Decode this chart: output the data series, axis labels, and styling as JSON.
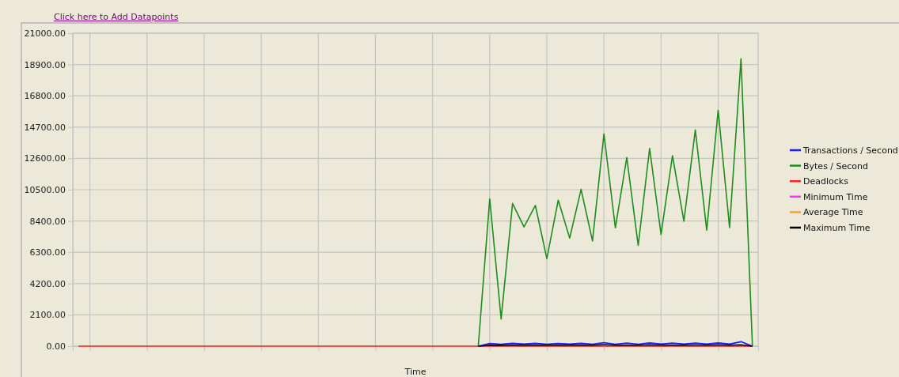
{
  "chart_data": {
    "type": "line",
    "xlabel": "Time",
    "annotations": [
      "Click here to Add Datapoints"
    ],
    "categories": [
      null,
      null,
      null,
      null,
      null,
      null,
      null,
      null,
      null,
      null,
      null,
      null,
      null,
      null,
      null,
      null,
      null,
      null,
      null,
      null,
      null,
      null,
      null,
      null,
      null,
      null,
      null,
      null,
      null,
      null,
      null,
      null,
      null,
      null,
      null,
      null,
      null,
      null,
      null,
      null,
      null,
      null,
      null,
      null,
      null,
      null,
      null,
      null,
      null,
      null,
      null,
      null,
      null,
      null,
      null,
      null,
      null,
      null,
      null,
      null
    ],
    "ylim": [
      0,
      21000
    ],
    "yticks": [
      {
        "value": 0,
        "label": "0.00"
      },
      {
        "value": 2100,
        "label": "2100.00"
      },
      {
        "value": 4200,
        "label": "4200.00"
      },
      {
        "value": 6300,
        "label": "6300.00"
      },
      {
        "value": 8400,
        "label": "8400.00"
      },
      {
        "value": 10500,
        "label": "10500.00"
      },
      {
        "value": 12600,
        "label": "12600.00"
      },
      {
        "value": 14700,
        "label": "14700.00"
      },
      {
        "value": 16800,
        "label": "16800.00"
      },
      {
        "value": 18900,
        "label": "18900.00"
      },
      {
        "value": 21000,
        "label": "21000.00"
      }
    ],
    "tick_labels": "y",
    "grid": true,
    "legend": "right",
    "marker": "none",
    "line_style": "solid",
    "series": [
      {
        "name": "Transactions / Second",
        "color": "#1a1aff",
        "values": [
          null,
          null,
          null,
          null,
          null,
          null,
          null,
          null,
          null,
          null,
          null,
          null,
          null,
          null,
          null,
          null,
          null,
          null,
          null,
          null,
          null,
          null,
          null,
          null,
          null,
          null,
          null,
          null,
          null,
          null,
          null,
          null,
          null,
          null,
          null,
          0,
          180,
          130,
          190,
          140,
          190,
          130,
          180,
          140,
          190,
          130,
          230,
          130,
          210,
          130,
          220,
          140,
          210,
          140,
          210,
          140,
          220,
          140,
          300,
          0
        ]
      },
      {
        "name": "Bytes / Second",
        "color": "#1e8c1e",
        "values": [
          null,
          null,
          null,
          null,
          null,
          null,
          null,
          null,
          null,
          null,
          null,
          null,
          null,
          null,
          null,
          null,
          null,
          null,
          null,
          null,
          null,
          null,
          null,
          null,
          null,
          null,
          null,
          null,
          null,
          null,
          null,
          null,
          null,
          null,
          null,
          0,
          9880,
          1820,
          9580,
          8000,
          9440,
          5880,
          9800,
          7250,
          10520,
          7060,
          14240,
          7940,
          12660,
          6760,
          13270,
          7500,
          12780,
          8380,
          14510,
          7780,
          15830,
          7960,
          19290,
          0
        ]
      },
      {
        "name": "Deadlocks",
        "color": "#ff2020",
        "values": [
          0,
          0,
          0,
          0,
          0,
          0,
          0,
          0,
          0,
          0,
          0,
          0,
          0,
          0,
          0,
          0,
          0,
          0,
          0,
          0,
          0,
          0,
          0,
          0,
          0,
          0,
          0,
          0,
          0,
          0,
          0,
          0,
          0,
          0,
          0,
          0,
          0,
          0,
          0,
          0,
          0,
          0,
          0,
          0,
          0,
          0,
          0,
          0,
          0,
          0,
          0,
          0,
          0,
          0,
          0,
          0,
          0,
          0,
          0,
          0
        ]
      },
      {
        "name": "Minimum Time",
        "color": "#ff30ff",
        "values": [
          null,
          null,
          null,
          null,
          null,
          null,
          null,
          null,
          null,
          null,
          null,
          null,
          null,
          null,
          null,
          null,
          null,
          null,
          null,
          null,
          null,
          null,
          null,
          null,
          null,
          null,
          null,
          null,
          null,
          null,
          null,
          null,
          null,
          null,
          null,
          null,
          null,
          null,
          null,
          null,
          null,
          null,
          null,
          null,
          null,
          null,
          null,
          null,
          null,
          null,
          null,
          null,
          null,
          null,
          null,
          null,
          null,
          null,
          null,
          null
        ]
      },
      {
        "name": "Average Time",
        "color": "#ffa020",
        "values": [
          null,
          null,
          null,
          null,
          null,
          null,
          null,
          null,
          null,
          null,
          null,
          null,
          null,
          null,
          null,
          null,
          null,
          null,
          null,
          null,
          null,
          null,
          null,
          null,
          null,
          null,
          null,
          null,
          null,
          null,
          null,
          null,
          null,
          null,
          null,
          null,
          null,
          null,
          null,
          null,
          null,
          null,
          null,
          null,
          null,
          null,
          null,
          null,
          null,
          null,
          null,
          null,
          null,
          null,
          null,
          null,
          null,
          null,
          null,
          null
        ]
      },
      {
        "name": "Maximum Time",
        "color": "#000000",
        "values": [
          null,
          null,
          null,
          null,
          null,
          null,
          null,
          null,
          null,
          null,
          null,
          null,
          null,
          null,
          null,
          null,
          null,
          null,
          null,
          null,
          null,
          null,
          null,
          null,
          null,
          null,
          null,
          null,
          null,
          null,
          null,
          null,
          null,
          null,
          null,
          0,
          70,
          60,
          80,
          70,
          80,
          70,
          70,
          70,
          80,
          70,
          110,
          70,
          80,
          70,
          90,
          70,
          80,
          70,
          90,
          70,
          90,
          70,
          90,
          0
        ]
      }
    ]
  }
}
